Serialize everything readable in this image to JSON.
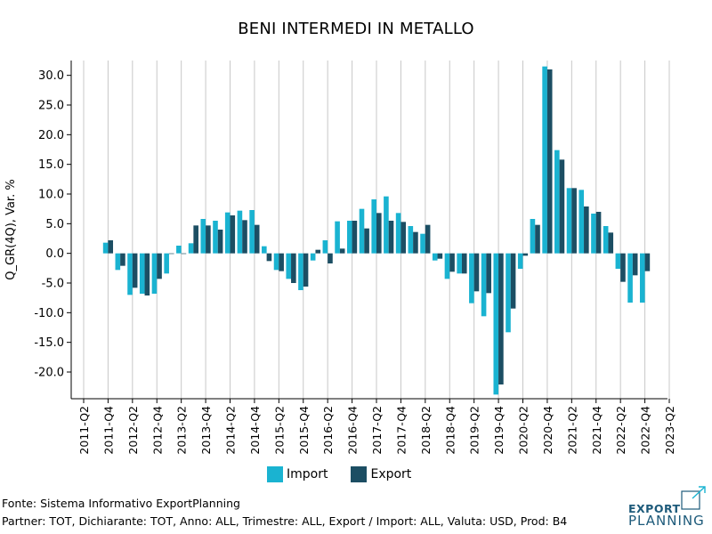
{
  "chart_data": {
    "type": "bar",
    "title": "BENI INTERMEDI IN METALLO",
    "ylabel": "Q_GR(4Q), Var. %",
    "xlabel": "",
    "ylim": [
      -24.5,
      32.5
    ],
    "yticks": [
      30,
      25,
      20,
      15,
      10,
      5,
      0,
      -5,
      -10,
      -15,
      -20
    ],
    "ytick_labels": [
      "30.0",
      "25.0",
      "20.0",
      "15.0",
      "10.0",
      "5.0",
      "0.0",
      "-5.0",
      "-10.0",
      "-15.0",
      "-20.0"
    ],
    "categories": [
      "2011-Q2",
      "2011-Q3",
      "2011-Q4",
      "2012-Q1",
      "2012-Q2",
      "2012-Q3",
      "2012-Q4",
      "2013-Q1",
      "2013-Q2",
      "2013-Q3",
      "2013-Q4",
      "2014-Q1",
      "2014-Q2",
      "2014-Q3",
      "2014-Q4",
      "2015-Q1",
      "2015-Q2",
      "2015-Q3",
      "2015-Q4",
      "2016-Q1",
      "2016-Q2",
      "2016-Q3",
      "2016-Q4",
      "2017-Q1",
      "2017-Q2",
      "2017-Q3",
      "2017-Q4",
      "2018-Q1",
      "2018-Q2",
      "2018-Q3",
      "2018-Q4",
      "2019-Q1",
      "2019-Q2",
      "2019-Q3",
      "2019-Q4",
      "2020-Q1",
      "2020-Q2",
      "2020-Q3",
      "2020-Q4",
      "2021-Q1",
      "2021-Q2",
      "2021-Q3",
      "2021-Q4",
      "2022-Q1",
      "2022-Q2",
      "2022-Q3",
      "2022-Q4",
      "2023-Q1",
      "2023-Q2"
    ],
    "xtick_labels": [
      "2011-Q2",
      "2011-Q4",
      "2012-Q2",
      "2012-Q4",
      "2013-Q2",
      "2013-Q4",
      "2014-Q2",
      "2014-Q4",
      "2015-Q2",
      "2015-Q4",
      "2016-Q2",
      "2016-Q4",
      "2017-Q2",
      "2017-Q4",
      "2018-Q2",
      "2018-Q4",
      "2019-Q2",
      "2019-Q4",
      "2020-Q2",
      "2020-Q4",
      "2021-Q2",
      "2021-Q4",
      "2022-Q2",
      "2022-Q4",
      "2023-Q2"
    ],
    "series": [
      {
        "name": "Import",
        "color": "#1ab3d1",
        "values": [
          null,
          null,
          1.8,
          -2.8,
          -7.0,
          -6.8,
          -6.8,
          -3.4,
          1.3,
          1.7,
          5.8,
          5.5,
          6.9,
          7.2,
          7.3,
          1.2,
          -2.8,
          -4.3,
          -6.2,
          -1.2,
          2.2,
          5.4,
          5.5,
          7.5,
          9.1,
          9.6,
          6.8,
          4.6,
          3.3,
          -1.2,
          -4.3,
          -3.4,
          -8.4,
          -10.6,
          -23.8,
          -13.3,
          -2.6,
          5.8,
          31.5,
          17.4,
          11.0,
          10.7,
          6.7,
          4.6,
          -2.6,
          -8.3,
          -8.3,
          null,
          null
        ]
      },
      {
        "name": "Export",
        "color": "#1c4e63",
        "values": [
          null,
          null,
          2.2,
          -2.1,
          -5.8,
          -7.1,
          -4.3,
          -0.1,
          -0.1,
          4.7,
          4.7,
          4.0,
          6.4,
          5.6,
          4.8,
          -1.3,
          -3.0,
          -5.0,
          -5.6,
          0.6,
          -1.7,
          0.8,
          5.5,
          4.2,
          6.8,
          5.5,
          5.3,
          3.6,
          4.8,
          -0.9,
          -3.1,
          -3.4,
          -6.4,
          -6.7,
          -22.1,
          -9.3,
          -0.4,
          4.8,
          31.0,
          15.8,
          11.0,
          7.9,
          7.0,
          3.5,
          -4.8,
          -3.7,
          -3.0,
          null,
          null
        ]
      }
    ],
    "grid": "vertical"
  },
  "legend": [
    {
      "label": "Import",
      "color": "#1ab3d1"
    },
    {
      "label": "Export",
      "color": "#1c4e63"
    }
  ],
  "footer": {
    "source": "Fonte: Sistema Informativo ExportPlanning",
    "params": "Partner: TOT, Dichiarante: TOT, Anno: ALL, Trimestre: ALL, Export / Import: ALL, Valuta: USD, Prod: B4"
  },
  "logo": {
    "line1": "EXPORT",
    "line2": "PLANNING"
  }
}
